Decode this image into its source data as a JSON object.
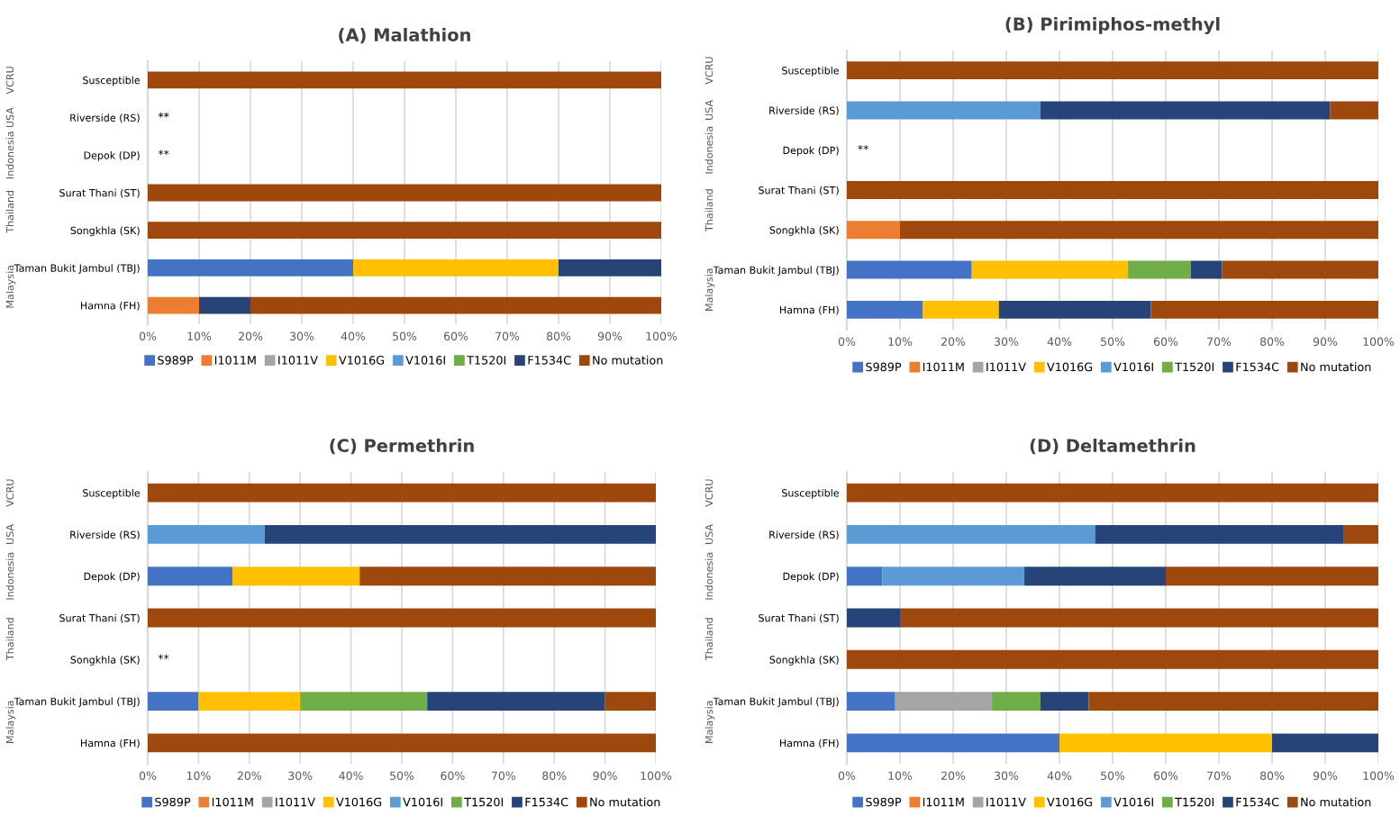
{
  "chart_data": [
    {
      "type": "bar",
      "orientation": "horizontal",
      "stacked": true,
      "title": "(A) Malathion",
      "categories": [
        "Susceptible",
        "Riverside (RS)",
        "Depok (DP)",
        "Surat Thani (ST)",
        "Songkhla (SK)",
        "Taman Bukit Jambul (TBJ)",
        "Hamna (FH)"
      ],
      "series": [
        {
          "name": "S989P",
          "color": "#4472c4",
          "values": [
            null,
            null,
            null,
            null,
            null,
            40,
            null
          ],
          "value_labels": [
            null,
            "**",
            "**",
            null,
            null,
            null,
            null
          ]
        },
        {
          "name": "I1011M",
          "color": "#ed7d31",
          "values": [
            null,
            null,
            null,
            null,
            null,
            null,
            10
          ]
        },
        {
          "name": "I1011V",
          "color": "#a5a5a5",
          "values": [
            null,
            null,
            null,
            null,
            null,
            null,
            null
          ]
        },
        {
          "name": "V1016G",
          "color": "#ffc000",
          "values": [
            null,
            null,
            null,
            null,
            null,
            40,
            null
          ]
        },
        {
          "name": "V1016I",
          "color": "#5b9bd5",
          "values": [
            null,
            null,
            null,
            null,
            null,
            null,
            null
          ]
        },
        {
          "name": "T1520I",
          "color": "#70ad47",
          "values": [
            null,
            null,
            null,
            null,
            null,
            null,
            null
          ]
        },
        {
          "name": "F1534C",
          "color": "#264478",
          "values": [
            null,
            null,
            null,
            null,
            null,
            20,
            10
          ]
        },
        {
          "name": "No mutation",
          "color": "#9e480e",
          "values": [
            100,
            null,
            null,
            100,
            100,
            null,
            80
          ]
        }
      ],
      "xlim": [
        0,
        100
      ],
      "xticks": [
        {
          "value": 0,
          "label": "0%"
        },
        {
          "value": 10,
          "label": "10%"
        },
        {
          "value": 20,
          "label": "20%"
        },
        {
          "value": 30,
          "label": "30%"
        },
        {
          "value": 40,
          "label": "40%"
        },
        {
          "value": 50,
          "label": "50%"
        },
        {
          "value": 60,
          "label": "60%"
        },
        {
          "value": 70,
          "label": "70%"
        },
        {
          "value": 80,
          "label": "80%"
        },
        {
          "value": 90,
          "label": "90%"
        },
        {
          "value": 100,
          "label": "100%"
        }
      ],
      "grid": "x",
      "legend": "bottom",
      "annotations": [
        "VCRU",
        "USA",
        "Indonesia",
        "Thailand",
        "Malaysia"
      ]
    },
    {
      "type": "bar",
      "orientation": "horizontal",
      "stacked": true,
      "title": "(B) Pirimiphos-methyl",
      "categories": [
        "Susceptible",
        "Riverside (RS)",
        "Depok (DP)",
        "Surat Thani (ST)",
        "Songkhla (SK)",
        "Taman Bukit Jambul (TBJ)",
        "Hamna (FH)"
      ],
      "series": [
        {
          "name": "S989P",
          "color": "#4472c4",
          "values": [
            null,
            null,
            null,
            null,
            null,
            23.5,
            14.3
          ],
          "value_labels": [
            null,
            null,
            "**",
            null,
            null,
            null,
            null
          ]
        },
        {
          "name": "I1011M",
          "color": "#ed7d31",
          "values": [
            null,
            null,
            null,
            null,
            10,
            null,
            null
          ]
        },
        {
          "name": "I1011V",
          "color": "#a5a5a5",
          "values": [
            null,
            null,
            null,
            null,
            null,
            null,
            null
          ]
        },
        {
          "name": "V1016G",
          "color": "#ffc000",
          "values": [
            null,
            null,
            null,
            null,
            null,
            29.4,
            14.3
          ]
        },
        {
          "name": "V1016I",
          "color": "#5b9bd5",
          "values": [
            null,
            36.4,
            null,
            null,
            null,
            null,
            null
          ]
        },
        {
          "name": "T1520I",
          "color": "#70ad47",
          "values": [
            null,
            null,
            null,
            null,
            null,
            11.8,
            null
          ]
        },
        {
          "name": "F1534C",
          "color": "#264478",
          "values": [
            null,
            54.5,
            null,
            null,
            null,
            5.9,
            28.6
          ]
        },
        {
          "name": "No mutation",
          "color": "#9e480e",
          "values": [
            100,
            9.1,
            null,
            100,
            90,
            29.4,
            42.8
          ]
        }
      ],
      "xlim": [
        0,
        100
      ],
      "xticks": [
        {
          "value": 0,
          "label": "0%"
        },
        {
          "value": 10,
          "label": "10%"
        },
        {
          "value": 20,
          "label": "20%"
        },
        {
          "value": 30,
          "label": "30%"
        },
        {
          "value": 40,
          "label": "40%"
        },
        {
          "value": 50,
          "label": "50%"
        },
        {
          "value": 60,
          "label": "60%"
        },
        {
          "value": 70,
          "label": "70%"
        },
        {
          "value": 80,
          "label": "80%"
        },
        {
          "value": 90,
          "label": "90%"
        },
        {
          "value": 100,
          "label": "100%"
        }
      ],
      "grid": "x",
      "legend": "bottom",
      "annotations": [
        "VCRU",
        "USA",
        "Indonesia",
        "Thailand",
        "Malaysia"
      ]
    },
    {
      "type": "bar",
      "orientation": "horizontal",
      "stacked": true,
      "title": "(C) Permethrin",
      "categories": [
        "Susceptible",
        "Riverside (RS)",
        "Depok (DP)",
        "Surat Thani (ST)",
        "Songkhla (SK)",
        "Taman Bukit Jambul (TBJ)",
        "Hamna (FH)"
      ],
      "series": [
        {
          "name": "S989P",
          "color": "#4472c4",
          "values": [
            null,
            null,
            16.7,
            null,
            null,
            10,
            null
          ],
          "value_labels": [
            null,
            null,
            null,
            null,
            "**",
            null,
            null
          ]
        },
        {
          "name": "I1011M",
          "color": "#ed7d31",
          "values": [
            null,
            null,
            null,
            null,
            null,
            null,
            null
          ]
        },
        {
          "name": "I1011V",
          "color": "#a5a5a5",
          "values": [
            null,
            null,
            null,
            null,
            null,
            null,
            null
          ]
        },
        {
          "name": "V1016G",
          "color": "#ffc000",
          "values": [
            null,
            null,
            25,
            null,
            null,
            20,
            null
          ]
        },
        {
          "name": "V1016I",
          "color": "#5b9bd5",
          "values": [
            null,
            23,
            null,
            null,
            null,
            null,
            null
          ]
        },
        {
          "name": "T1520I",
          "color": "#70ad47",
          "values": [
            null,
            null,
            null,
            null,
            null,
            25,
            null
          ]
        },
        {
          "name": "F1534C",
          "color": "#264478",
          "values": [
            null,
            77,
            null,
            null,
            null,
            35,
            null
          ]
        },
        {
          "name": "No mutation",
          "color": "#9e480e",
          "values": [
            100,
            null,
            58.3,
            100,
            null,
            10,
            100
          ]
        }
      ],
      "xlim": [
        0,
        100
      ],
      "xticks": [
        {
          "value": 0,
          "label": "0%"
        },
        {
          "value": 10,
          "label": "10%"
        },
        {
          "value": 20,
          "label": "20%"
        },
        {
          "value": 30,
          "label": "30%"
        },
        {
          "value": 40,
          "label": "40%"
        },
        {
          "value": 50,
          "label": "50%"
        },
        {
          "value": 60,
          "label": "60%"
        },
        {
          "value": 70,
          "label": "70%"
        },
        {
          "value": 80,
          "label": "80%"
        },
        {
          "value": 90,
          "label": "90%"
        },
        {
          "value": 100,
          "label": "100%"
        }
      ],
      "grid": "x",
      "legend": "bottom",
      "annotations": [
        "VCRU",
        "USA",
        "Indonesia",
        "Thailand",
        "Malaysia"
      ]
    },
    {
      "type": "bar",
      "orientation": "horizontal",
      "stacked": true,
      "title": "(D) Deltamethrin",
      "categories": [
        "Susceptible",
        "Riverside (RS)",
        "Depok (DP)",
        "Surat Thani (ST)",
        "Songkhla (SK)",
        "Taman Bukit Jambul (TBJ)",
        "Hamna (FH)"
      ],
      "series": [
        {
          "name": "S989P",
          "color": "#4472c4",
          "values": [
            null,
            null,
            6.7,
            null,
            null,
            9.1,
            40
          ]
        },
        {
          "name": "I1011M",
          "color": "#ed7d31",
          "values": [
            null,
            null,
            null,
            null,
            null,
            null,
            null
          ]
        },
        {
          "name": "I1011V",
          "color": "#a5a5a5",
          "values": [
            null,
            null,
            null,
            null,
            null,
            18.2,
            null
          ]
        },
        {
          "name": "V1016G",
          "color": "#ffc000",
          "values": [
            null,
            null,
            null,
            null,
            null,
            null,
            40
          ]
        },
        {
          "name": "V1016I",
          "color": "#5b9bd5",
          "values": [
            null,
            46.7,
            26.7,
            null,
            null,
            null,
            null
          ]
        },
        {
          "name": "T1520I",
          "color": "#70ad47",
          "values": [
            null,
            null,
            null,
            null,
            null,
            9.1,
            null
          ]
        },
        {
          "name": "F1534C",
          "color": "#264478",
          "values": [
            null,
            46.7,
            26.6,
            10,
            null,
            9.1,
            20
          ]
        },
        {
          "name": "No mutation",
          "color": "#9e480e",
          "values": [
            100,
            6.6,
            40,
            90,
            100,
            54.5,
            null
          ]
        }
      ],
      "xlim": [
        0,
        100
      ],
      "xticks": [
        {
          "value": 0,
          "label": "0%"
        },
        {
          "value": 10,
          "label": "10%"
        },
        {
          "value": 20,
          "label": "20%"
        },
        {
          "value": 30,
          "label": "30%"
        },
        {
          "value": 40,
          "label": "40%"
        },
        {
          "value": 50,
          "label": "50%"
        },
        {
          "value": 60,
          "label": "60%"
        },
        {
          "value": 70,
          "label": "70%"
        },
        {
          "value": 80,
          "label": "80%"
        },
        {
          "value": 90,
          "label": "90%"
        },
        {
          "value": 100,
          "label": "100%"
        }
      ],
      "grid": "x",
      "legend": "bottom",
      "annotations": [
        "VCRU",
        "USA",
        "Indonesia",
        "Thailand",
        "Malaysia"
      ]
    }
  ]
}
